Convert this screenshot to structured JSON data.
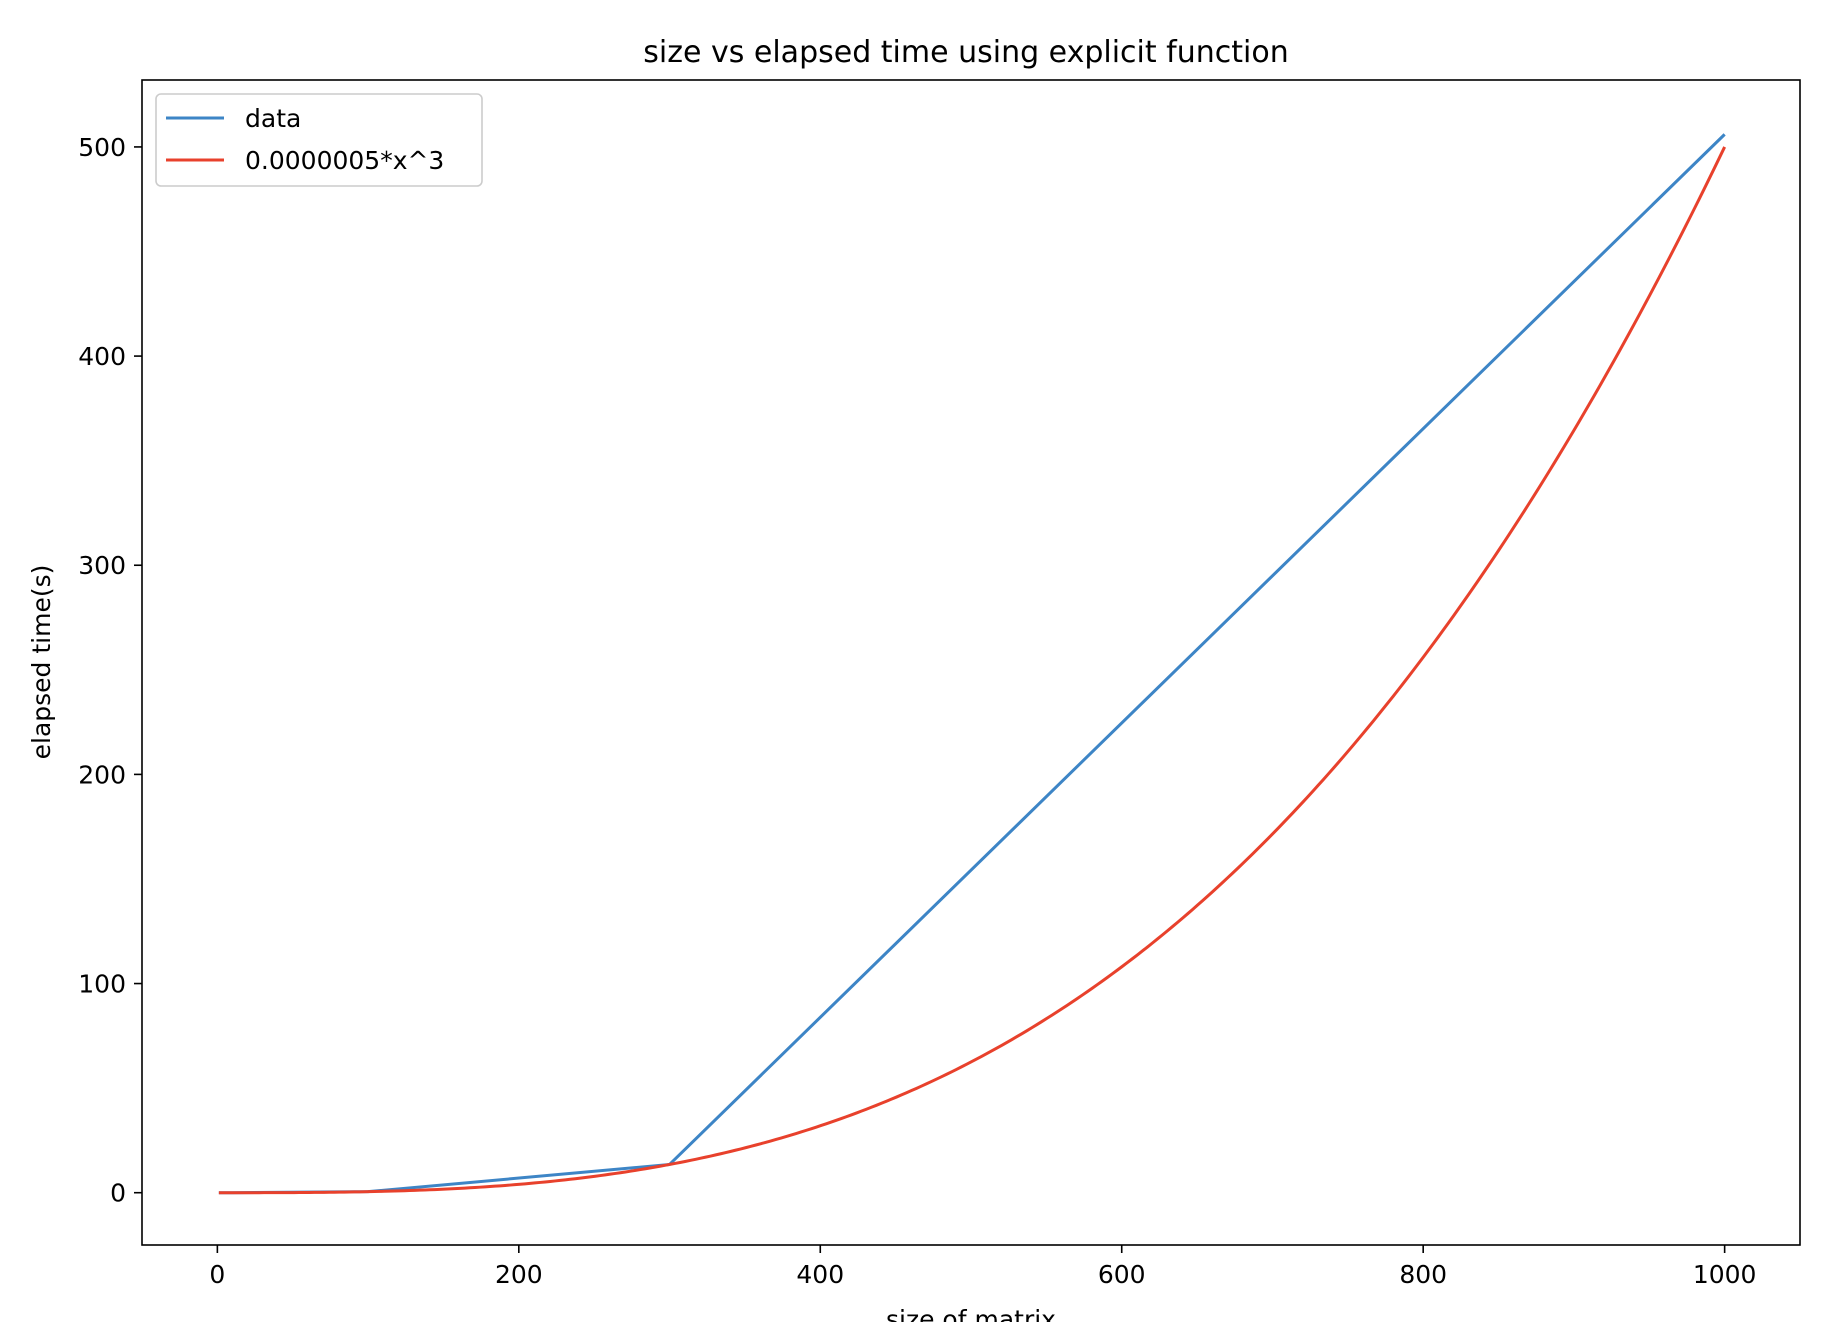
{
  "chart_data": {
    "type": "line",
    "title": "size vs elapsed time using explicit function",
    "xlabel": "size of matrix",
    "ylabel": "elapsed time(s)",
    "xlim": [
      -50,
      1050
    ],
    "ylim": [
      -25,
      532
    ],
    "xticks": [
      0,
      200,
      400,
      600,
      800,
      1000
    ],
    "yticks": [
      0,
      100,
      200,
      300,
      400,
      500
    ],
    "grid": false,
    "legend_position": "top-left",
    "series": [
      {
        "name": "data",
        "color": "#3d85c6",
        "x": [
          1,
          10,
          100,
          300,
          1000
        ],
        "y": [
          0,
          0.01,
          0.5,
          13.5,
          506
        ]
      },
      {
        "name": "0.0000005*x^3",
        "color": "#e8412c",
        "function": "0.0000005*x^3",
        "x_range": [
          1,
          1000
        ]
      }
    ]
  }
}
